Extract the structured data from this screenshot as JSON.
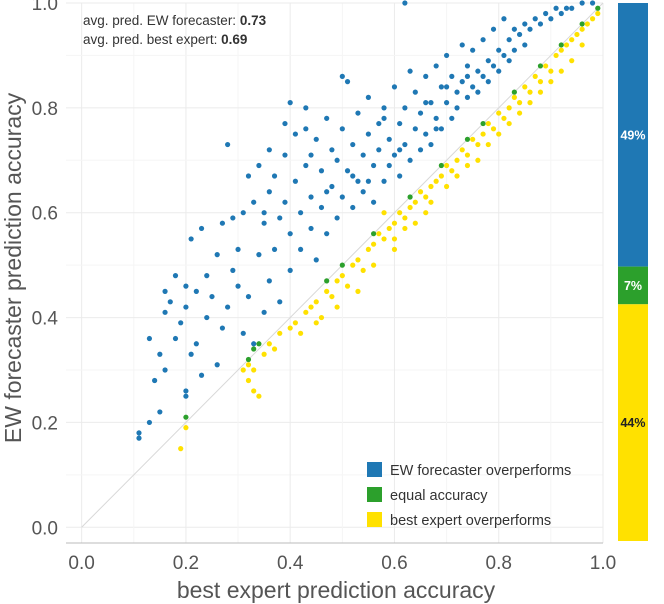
{
  "chart_data": {
    "type": "scatter",
    "xlabel": "best expert prediction accuracy",
    "ylabel": "EW forecaster prediction accuracy",
    "xlim": [
      -0.03,
      1.0
    ],
    "ylim": [
      -0.03,
      1.0
    ],
    "x_ticks": [
      0.0,
      0.2,
      0.4,
      0.6,
      0.8,
      1.0
    ],
    "y_ticks": [
      0.0,
      0.2,
      0.4,
      0.6,
      0.8,
      1.0
    ],
    "x_tick_labels": [
      "0.0",
      "0.2",
      "0.4",
      "0.6",
      "0.8",
      "1.0"
    ],
    "y_tick_labels": [
      "0.0",
      "0.2",
      "0.4",
      "0.6",
      "0.8",
      "1.0"
    ],
    "grid": true,
    "diagonal_reference": [
      [
        0.0,
        0.0
      ],
      [
        1.0,
        1.0
      ]
    ],
    "annotations": [
      {
        "label": "avg. pred. EW forecaster: ",
        "value": "0.73"
      },
      {
        "label": "avg. pred. best expert: ",
        "value": "0.69"
      }
    ],
    "legend": {
      "position": "bottom-right",
      "entries": [
        {
          "label": "EW forecaster overperforms",
          "color": "#1f78b4"
        },
        {
          "label": "equal accuracy",
          "color": "#2ca02c"
        },
        {
          "label": "best expert overperforms",
          "color": "#ffe100"
        }
      ]
    },
    "series": [
      {
        "name": "EW forecaster overperforms",
        "color": "#1f78b4",
        "points": [
          [
            0.11,
            0.17
          ],
          [
            0.11,
            0.18
          ],
          [
            0.13,
            0.2
          ],
          [
            0.14,
            0.28
          ],
          [
            0.15,
            0.22
          ],
          [
            0.15,
            0.33
          ],
          [
            0.13,
            0.36
          ],
          [
            0.16,
            0.3
          ],
          [
            0.16,
            0.41
          ],
          [
            0.16,
            0.45
          ],
          [
            0.17,
            0.43
          ],
          [
            0.18,
            0.36
          ],
          [
            0.18,
            0.48
          ],
          [
            0.19,
            0.39
          ],
          [
            0.2,
            0.26
          ],
          [
            0.2,
            0.25
          ],
          [
            0.2,
            0.42
          ],
          [
            0.2,
            0.46
          ],
          [
            0.21,
            0.55
          ],
          [
            0.21,
            0.33
          ],
          [
            0.22,
            0.45
          ],
          [
            0.22,
            0.35
          ],
          [
            0.23,
            0.57
          ],
          [
            0.23,
            0.29
          ],
          [
            0.24,
            0.4
          ],
          [
            0.24,
            0.48
          ],
          [
            0.25,
            0.44
          ],
          [
            0.26,
            0.52
          ],
          [
            0.26,
            0.31
          ],
          [
            0.27,
            0.38
          ],
          [
            0.27,
            0.58
          ],
          [
            0.28,
            0.73
          ],
          [
            0.28,
            0.42
          ],
          [
            0.29,
            0.59
          ],
          [
            0.29,
            0.49
          ],
          [
            0.3,
            0.53
          ],
          [
            0.3,
            0.46
          ],
          [
            0.31,
            0.6
          ],
          [
            0.31,
            0.37
          ],
          [
            0.32,
            0.67
          ],
          [
            0.32,
            0.44
          ],
          [
            0.33,
            0.62
          ],
          [
            0.33,
            0.35
          ],
          [
            0.34,
            0.69
          ],
          [
            0.34,
            0.52
          ],
          [
            0.35,
            0.58
          ],
          [
            0.35,
            0.41
          ],
          [
            0.36,
            0.64
          ],
          [
            0.36,
            0.72
          ],
          [
            0.36,
            0.47
          ],
          [
            0.37,
            0.67
          ],
          [
            0.37,
            0.53
          ],
          [
            0.38,
            0.59
          ],
          [
            0.38,
            0.43
          ],
          [
            0.39,
            0.71
          ],
          [
            0.39,
            0.62
          ],
          [
            0.4,
            0.56
          ],
          [
            0.4,
            0.81
          ],
          [
            0.4,
            0.49
          ],
          [
            0.41,
            0.66
          ],
          [
            0.41,
            0.75
          ],
          [
            0.42,
            0.6
          ],
          [
            0.42,
            0.53
          ],
          [
            0.43,
            0.8
          ],
          [
            0.43,
            0.69
          ],
          [
            0.44,
            0.57
          ],
          [
            0.44,
            0.63
          ],
          [
            0.45,
            0.74
          ],
          [
            0.45,
            0.51
          ],
          [
            0.46,
            0.68
          ],
          [
            0.46,
            0.61
          ],
          [
            0.47,
            0.78
          ],
          [
            0.47,
            0.56
          ],
          [
            0.48,
            0.72
          ],
          [
            0.48,
            0.65
          ],
          [
            0.49,
            0.59
          ],
          [
            0.49,
            0.7
          ],
          [
            0.5,
            0.76
          ],
          [
            0.5,
            0.63
          ],
          [
            0.51,
            0.85
          ],
          [
            0.51,
            0.68
          ],
          [
            0.52,
            0.73
          ],
          [
            0.52,
            0.61
          ],
          [
            0.53,
            0.79
          ],
          [
            0.53,
            0.66
          ],
          [
            0.54,
            0.71
          ],
          [
            0.54,
            0.64
          ],
          [
            0.55,
            0.75
          ],
          [
            0.55,
            0.82
          ],
          [
            0.56,
            0.69
          ],
          [
            0.56,
            0.62
          ],
          [
            0.57,
            0.77
          ],
          [
            0.57,
            0.72
          ],
          [
            0.58,
            0.8
          ],
          [
            0.58,
            0.66
          ],
          [
            0.59,
            0.74
          ],
          [
            0.59,
            0.69
          ],
          [
            0.6,
            0.84
          ],
          [
            0.6,
            0.71
          ],
          [
            0.61,
            0.77
          ],
          [
            0.61,
            0.67
          ],
          [
            0.62,
            0.8
          ],
          [
            0.62,
            0.73
          ],
          [
            0.63,
            0.87
          ],
          [
            0.63,
            0.7
          ],
          [
            0.64,
            0.76
          ],
          [
            0.64,
            0.83
          ],
          [
            0.65,
            0.72
          ],
          [
            0.65,
            0.79
          ],
          [
            0.66,
            0.86
          ],
          [
            0.66,
            0.75
          ],
          [
            0.67,
            0.81
          ],
          [
            0.67,
            0.73
          ],
          [
            0.68,
            0.88
          ],
          [
            0.68,
            0.78
          ],
          [
            0.69,
            0.84
          ],
          [
            0.69,
            0.76
          ],
          [
            0.7,
            0.9
          ],
          [
            0.7,
            0.81
          ],
          [
            0.71,
            0.78
          ],
          [
            0.71,
            0.86
          ],
          [
            0.72,
            0.83
          ],
          [
            0.72,
            0.8
          ],
          [
            0.73,
            0.92
          ],
          [
            0.73,
            0.85
          ],
          [
            0.74,
            0.82
          ],
          [
            0.74,
            0.88
          ],
          [
            0.75,
            0.84
          ],
          [
            0.75,
            0.91
          ],
          [
            0.76,
            0.87
          ],
          [
            0.76,
            0.83
          ],
          [
            0.77,
            0.93
          ],
          [
            0.77,
            0.86
          ],
          [
            0.78,
            0.89
          ],
          [
            0.78,
            0.85
          ],
          [
            0.79,
            0.95
          ],
          [
            0.79,
            0.88
          ],
          [
            0.8,
            0.91
          ],
          [
            0.8,
            0.87
          ],
          [
            0.81,
            0.97
          ],
          [
            0.81,
            0.9
          ],
          [
            0.82,
            0.93
          ],
          [
            0.82,
            0.89
          ],
          [
            0.83,
            0.95
          ],
          [
            0.83,
            0.91
          ],
          [
            0.84,
            0.94
          ],
          [
            0.85,
            0.96
          ],
          [
            0.85,
            0.92
          ],
          [
            0.86,
            0.95
          ],
          [
            0.87,
            0.97
          ],
          [
            0.88,
            0.96
          ],
          [
            0.89,
            0.98
          ],
          [
            0.9,
            0.97
          ],
          [
            0.91,
            0.99
          ],
          [
            0.92,
            0.98
          ],
          [
            0.93,
            0.99
          ],
          [
            0.94,
            0.99
          ],
          [
            0.96,
            1.0
          ],
          [
            0.98,
            1.0
          ],
          [
            0.62,
            1.0
          ],
          [
            0.43,
            0.76
          ],
          [
            0.5,
            0.86
          ],
          [
            0.39,
            0.77
          ],
          [
            0.55,
            0.66
          ],
          [
            0.47,
            0.64
          ],
          [
            0.44,
            0.71
          ],
          [
            0.58,
            0.78
          ],
          [
            0.35,
            0.6
          ],
          [
            0.66,
            0.81
          ],
          [
            0.7,
            0.84
          ],
          [
            0.74,
            0.86
          ],
          [
            0.61,
            0.72
          ],
          [
            0.68,
            0.76
          ],
          [
            0.52,
            0.67
          ]
        ]
      },
      {
        "name": "equal accuracy",
        "color": "#2ca02c",
        "points": [
          [
            0.2,
            0.21
          ],
          [
            0.32,
            0.32
          ],
          [
            0.33,
            0.34
          ],
          [
            0.34,
            0.35
          ],
          [
            0.47,
            0.47
          ],
          [
            0.5,
            0.5
          ],
          [
            0.56,
            0.56
          ],
          [
            0.63,
            0.63
          ],
          [
            0.69,
            0.69
          ],
          [
            0.74,
            0.74
          ],
          [
            0.77,
            0.77
          ],
          [
            0.83,
            0.83
          ],
          [
            0.88,
            0.88
          ],
          [
            0.92,
            0.92
          ],
          [
            0.96,
            0.96
          ],
          [
            0.99,
            0.99
          ]
        ]
      },
      {
        "name": "best expert overperforms",
        "color": "#ffe100",
        "points": [
          [
            0.19,
            0.15
          ],
          [
            0.2,
            0.19
          ],
          [
            0.31,
            0.3
          ],
          [
            0.32,
            0.31
          ],
          [
            0.32,
            0.28
          ],
          [
            0.33,
            0.26
          ],
          [
            0.33,
            0.3
          ],
          [
            0.34,
            0.25
          ],
          [
            0.35,
            0.33
          ],
          [
            0.36,
            0.35
          ],
          [
            0.37,
            0.34
          ],
          [
            0.38,
            0.37
          ],
          [
            0.4,
            0.38
          ],
          [
            0.41,
            0.39
          ],
          [
            0.42,
            0.37
          ],
          [
            0.43,
            0.41
          ],
          [
            0.44,
            0.42
          ],
          [
            0.45,
            0.43
          ],
          [
            0.46,
            0.4
          ],
          [
            0.47,
            0.45
          ],
          [
            0.48,
            0.44
          ],
          [
            0.49,
            0.47
          ],
          [
            0.5,
            0.48
          ],
          [
            0.51,
            0.46
          ],
          [
            0.52,
            0.5
          ],
          [
            0.53,
            0.51
          ],
          [
            0.54,
            0.49
          ],
          [
            0.55,
            0.53
          ],
          [
            0.56,
            0.54
          ],
          [
            0.56,
            0.5
          ],
          [
            0.57,
            0.56
          ],
          [
            0.58,
            0.55
          ],
          [
            0.59,
            0.57
          ],
          [
            0.6,
            0.58
          ],
          [
            0.6,
            0.53
          ],
          [
            0.61,
            0.6
          ],
          [
            0.62,
            0.59
          ],
          [
            0.63,
            0.61
          ],
          [
            0.64,
            0.62
          ],
          [
            0.64,
            0.58
          ],
          [
            0.65,
            0.64
          ],
          [
            0.66,
            0.63
          ],
          [
            0.67,
            0.65
          ],
          [
            0.68,
            0.66
          ],
          [
            0.69,
            0.67
          ],
          [
            0.7,
            0.69
          ],
          [
            0.71,
            0.68
          ],
          [
            0.72,
            0.7
          ],
          [
            0.73,
            0.72
          ],
          [
            0.74,
            0.71
          ],
          [
            0.75,
            0.74
          ],
          [
            0.76,
            0.73
          ],
          [
            0.77,
            0.75
          ],
          [
            0.78,
            0.77
          ],
          [
            0.79,
            0.76
          ],
          [
            0.8,
            0.79
          ],
          [
            0.81,
            0.78
          ],
          [
            0.82,
            0.8
          ],
          [
            0.83,
            0.82
          ],
          [
            0.84,
            0.81
          ],
          [
            0.85,
            0.84
          ],
          [
            0.86,
            0.83
          ],
          [
            0.87,
            0.86
          ],
          [
            0.88,
            0.85
          ],
          [
            0.89,
            0.88
          ],
          [
            0.9,
            0.87
          ],
          [
            0.91,
            0.9
          ],
          [
            0.92,
            0.91
          ],
          [
            0.93,
            0.92
          ],
          [
            0.94,
            0.93
          ],
          [
            0.95,
            0.94
          ],
          [
            0.96,
            0.95
          ],
          [
            0.97,
            0.96
          ],
          [
            0.98,
            0.97
          ],
          [
            0.99,
            0.98
          ],
          [
            0.58,
            0.6
          ],
          [
            0.62,
            0.57
          ],
          [
            0.66,
            0.6
          ],
          [
            0.7,
            0.65
          ],
          [
            0.74,
            0.69
          ],
          [
            0.78,
            0.73
          ],
          [
            0.82,
            0.77
          ],
          [
            0.86,
            0.81
          ],
          [
            0.9,
            0.85
          ],
          [
            0.94,
            0.89
          ],
          [
            0.45,
            0.39
          ],
          [
            0.49,
            0.42
          ],
          [
            0.53,
            0.45
          ],
          [
            0.6,
            0.55
          ],
          [
            0.67,
            0.62
          ],
          [
            0.72,
            0.67
          ],
          [
            0.76,
            0.7
          ],
          [
            0.8,
            0.75
          ],
          [
            0.84,
            0.79
          ],
          [
            0.88,
            0.83
          ],
          [
            0.92,
            0.87
          ],
          [
            0.96,
            0.92
          ]
        ]
      }
    ],
    "bar": {
      "type": "stacked_bar",
      "segments": [
        {
          "label": "49%",
          "value": 49,
          "color": "#1f78b4"
        },
        {
          "label": "7%",
          "value": 7,
          "color": "#2ca02c"
        },
        {
          "label": "44%",
          "value": 44,
          "color": "#ffe100"
        }
      ]
    }
  }
}
